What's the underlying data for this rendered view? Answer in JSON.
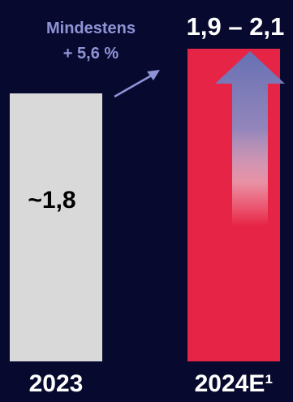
{
  "chart_data": {
    "type": "bar",
    "categories": [
      "2023",
      "2024E¹"
    ],
    "values": [
      1.8,
      2.1
    ],
    "data_labels": [
      "~1,8",
      "1,9 – 2,1"
    ],
    "range_2024": [
      1.9,
      2.1
    ],
    "annotation": {
      "line1": "Mindestens",
      "line2": "+ 5,6 %"
    },
    "colors": {
      "background": "#070a2e",
      "bar_2023": "#d9d9d9",
      "bar_2024": "#e62546",
      "label_light": "#ffffff",
      "label_dark": "#000000",
      "annotation": "#8f93d6",
      "arrow": "#6670b3"
    },
    "ylim": [
      0,
      2.1
    ]
  }
}
